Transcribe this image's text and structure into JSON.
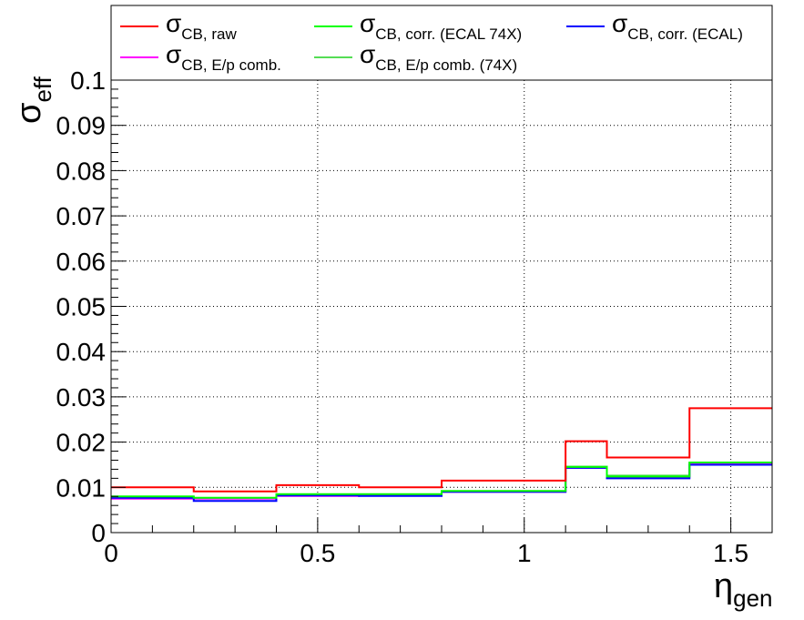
{
  "chart_data": {
    "type": "line",
    "style": "step-histogram",
    "xlabel": {
      "symbol": "η",
      "subscript": "gen"
    },
    "ylabel": {
      "symbol": "σ",
      "subscript": "eff"
    },
    "xlim": [
      0,
      1.6
    ],
    "ylim": [
      0,
      0.1
    ],
    "grid": true,
    "legend_placement": "top",
    "x_ticks": [
      "0",
      "0.5",
      "1",
      "1.5"
    ],
    "y_ticks": [
      "0",
      "0.01",
      "0.02",
      "0.03",
      "0.04",
      "0.05",
      "0.06",
      "0.07",
      "0.08",
      "0.09",
      "0.1"
    ],
    "bin_edges": [
      0,
      0.2,
      0.4,
      0.6,
      0.8,
      1.1,
      1.2,
      1.4,
      1.6
    ],
    "series": [
      {
        "name": "CB, raw",
        "symbol": "σ",
        "color": "#ff0000",
        "values": [
          0.01,
          0.0091,
          0.0105,
          0.01,
          0.0115,
          0.0202,
          0.0166,
          0.0275
        ]
      },
      {
        "name": "CB, corr. (ECAL 74X)",
        "symbol": "σ",
        "color": "#00ff00",
        "values": [
          0.008,
          0.0077,
          0.0085,
          0.0085,
          0.0092,
          0.0145,
          0.0124,
          0.0155
        ]
      },
      {
        "name": "CB, corr. (ECAL)",
        "symbol": "σ",
        "color": "#0000ff",
        "values": [
          0.0077,
          0.007,
          0.0082,
          0.0081,
          0.009,
          0.0143,
          0.012,
          0.015
        ]
      },
      {
        "name": "CB, E/p comb.",
        "symbol": "σ",
        "color": "#ff00ff",
        "values": [
          0.0075,
          0.0075,
          0.0081,
          0.0082,
          0.009,
          0.0143,
          0.0122,
          0.0152
        ]
      },
      {
        "name": "CB, E/p comb. (74X)",
        "symbol": "σ",
        "color": "#55dd55",
        "values": [
          0.0079,
          0.0076,
          0.0084,
          0.0084,
          0.0091,
          0.0146,
          0.0126,
          0.0154
        ]
      }
    ]
  }
}
